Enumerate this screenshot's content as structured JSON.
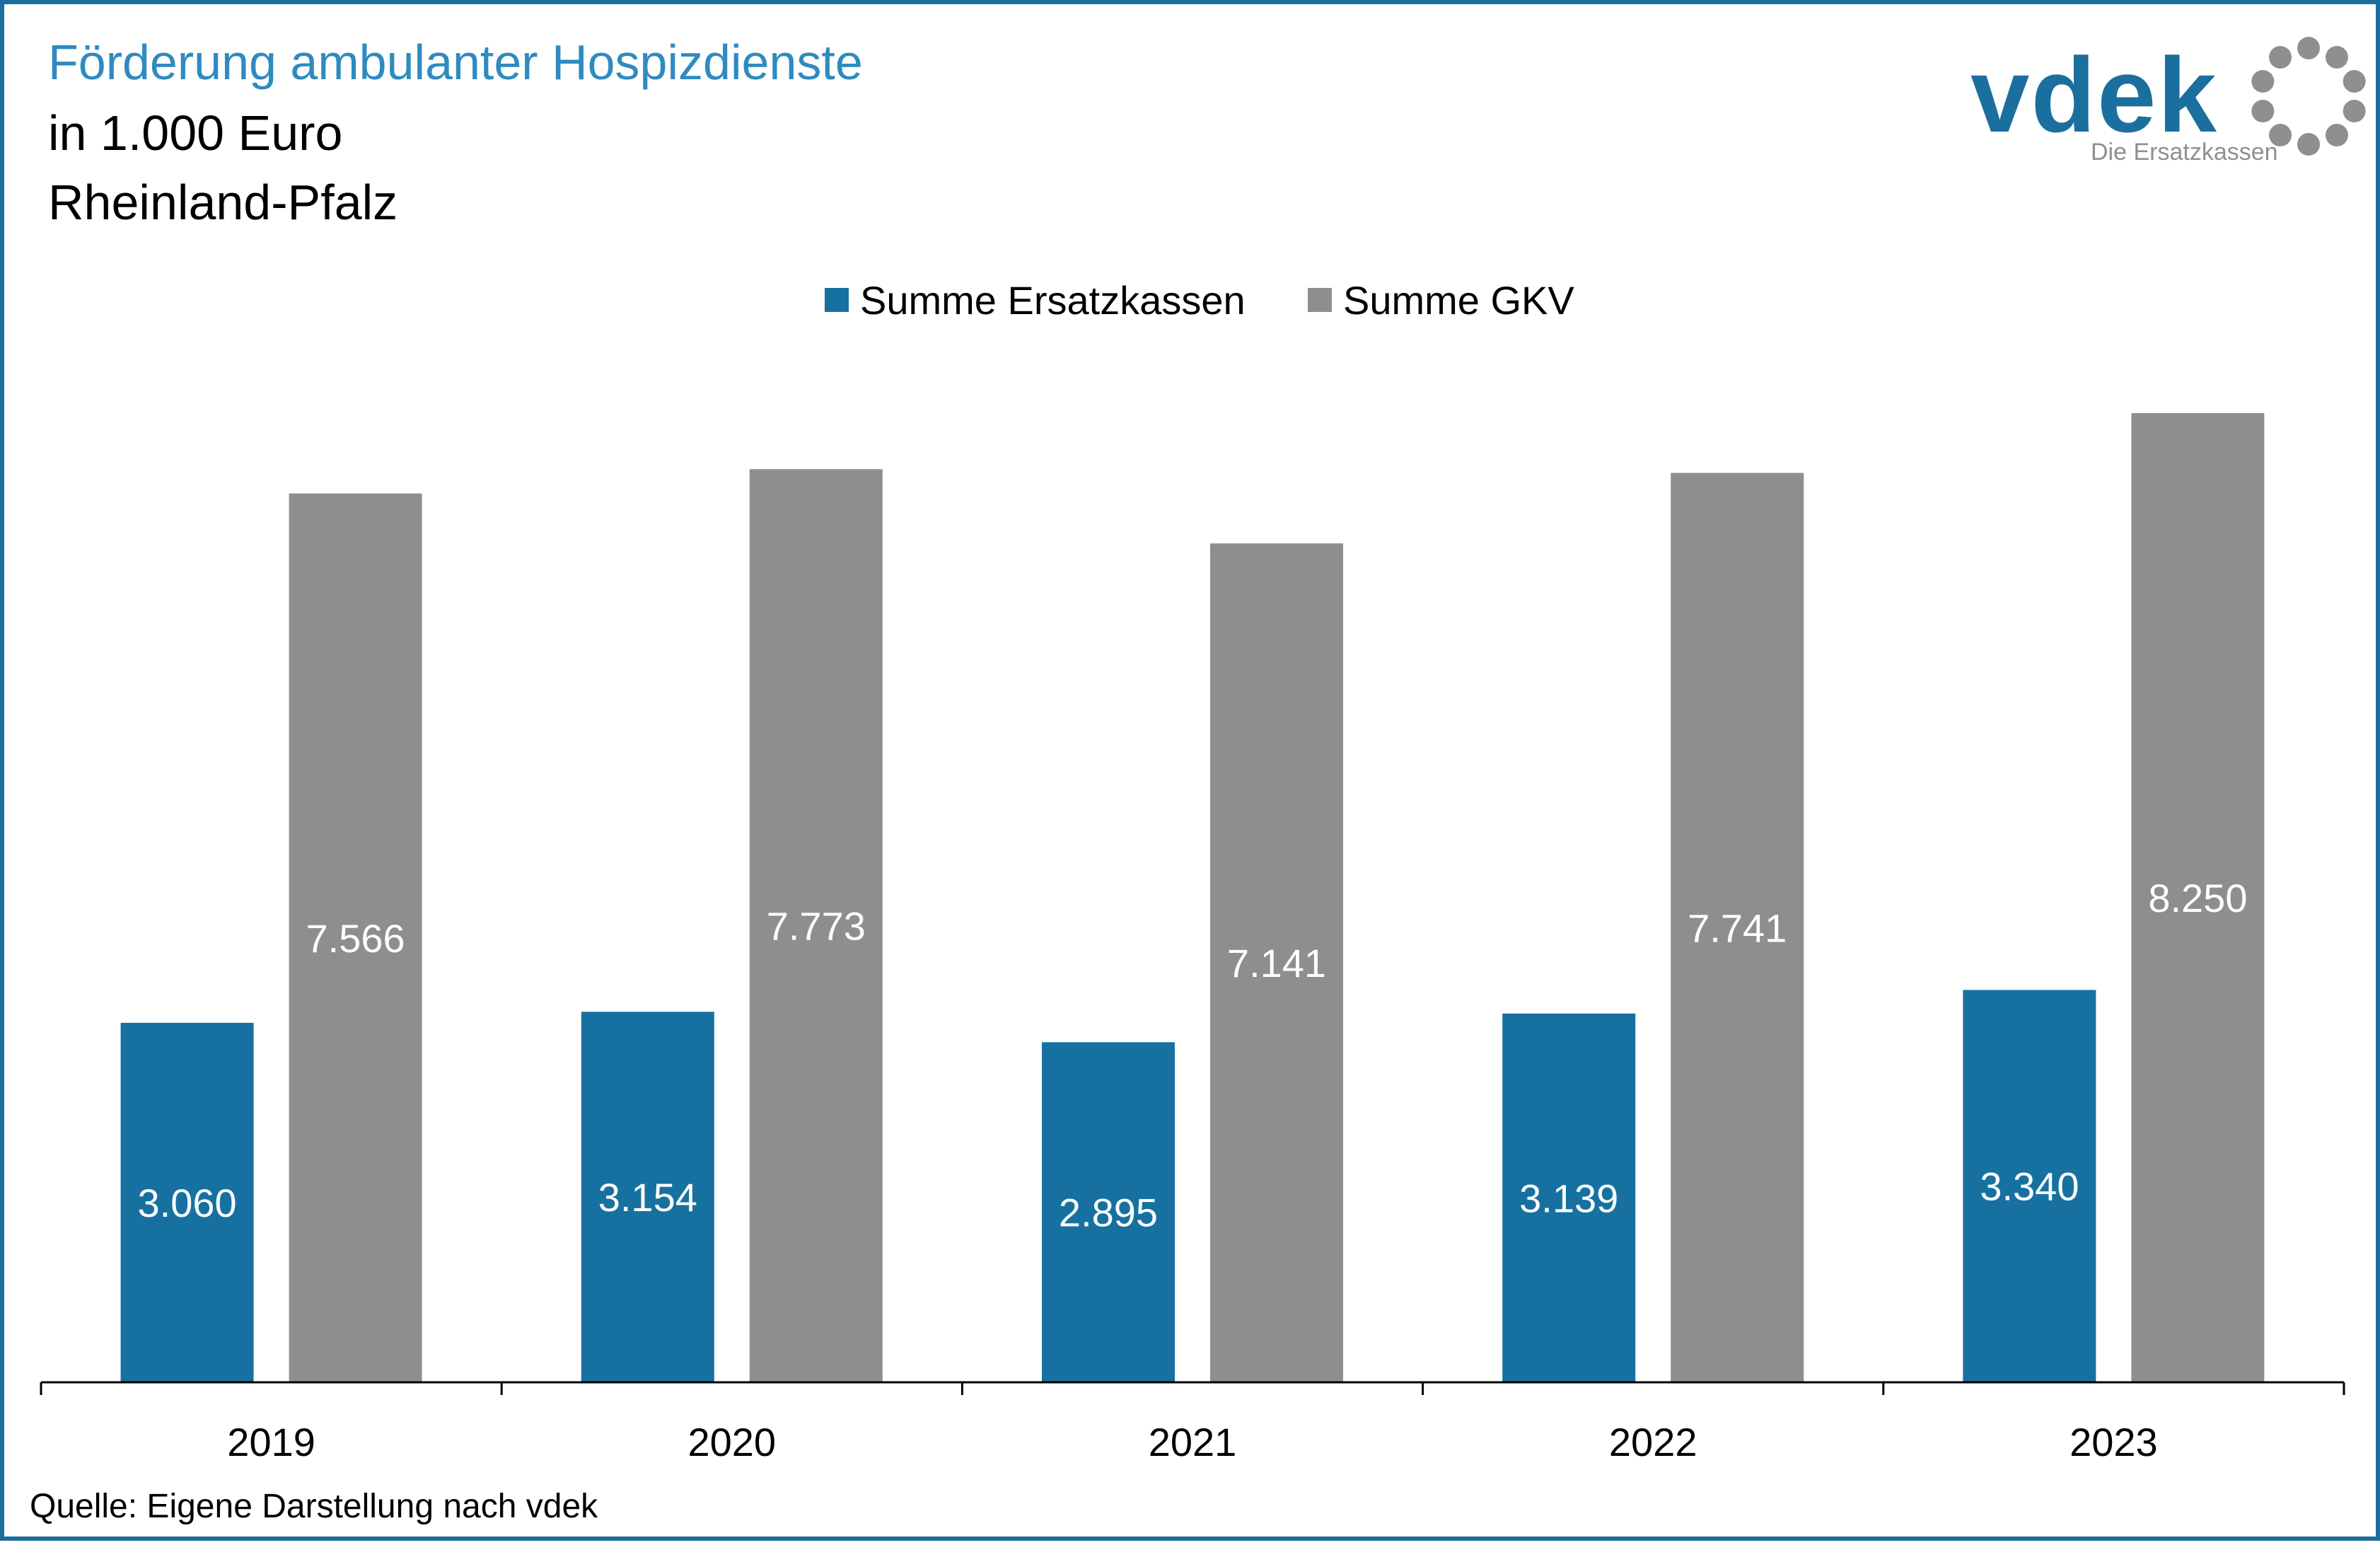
{
  "title": "Förderung ambulanter Hospizdienste",
  "subtitle": "in 1.000 Euro",
  "region": "Rheinland-Pfalz",
  "source": "Quelle: Eigene Darstellung nach vdek",
  "logo": {
    "wordmark": "vdek",
    "tagline": "Die Ersatzkassen"
  },
  "colors": {
    "frame": "#1b6f9e",
    "title": "#2e8bc0",
    "ersatzkassen": "#1771a0",
    "gkv": "#8e8e8e",
    "logo_text": "#1b6f9e",
    "logo_ring": "#8f8f8f",
    "axis": "#000000",
    "bar_label": "#ffffff"
  },
  "chart_data": {
    "type": "bar",
    "categories": [
      "2019",
      "2020",
      "2021",
      "2022",
      "2023"
    ],
    "series": [
      {
        "name": "Summe Ersatzkassen",
        "values": [
          3060,
          3154,
          2895,
          3139,
          3340
        ],
        "labels": [
          "3.060",
          "3.154",
          "2.895",
          "3.139",
          "3.340"
        ]
      },
      {
        "name": "Summe GKV",
        "values": [
          7566,
          7773,
          7141,
          7741,
          8250
        ],
        "labels": [
          "7.566",
          "7.773",
          "7.141",
          "7.741",
          "8.250"
        ]
      }
    ],
    "legend": "top-center",
    "grid": false,
    "ylim": [
      0,
      8250
    ]
  }
}
